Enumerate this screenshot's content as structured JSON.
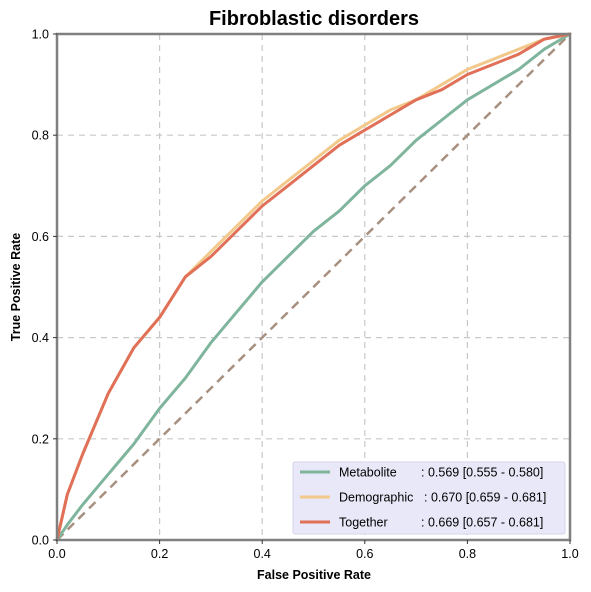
{
  "chart_data": {
    "type": "line",
    "title": "Fibroblastic disorders",
    "xlabel": "False Positive Rate",
    "ylabel": "True Positive Rate",
    "xlim": [
      0,
      1
    ],
    "ylim": [
      0,
      1
    ],
    "xticks": [
      "0.0",
      "0.2",
      "0.4",
      "0.6",
      "0.8",
      "1.0"
    ],
    "yticks": [
      "0.0",
      "0.2",
      "0.4",
      "0.6",
      "0.8",
      "1.0"
    ],
    "grid": true,
    "legend_position": "bottom-right",
    "colors": {
      "metabolite": "#7fb59c",
      "demographic": "#f2c98a",
      "together": "#e07058",
      "diagonal": "#a89080",
      "frame": "#808080",
      "legend_bg": "#e8e8f8"
    },
    "series": [
      {
        "name": "Metabolite",
        "legend": ": 0.569 [0.555 - 0.580]",
        "x": [
          0,
          0.02,
          0.05,
          0.1,
          0.15,
          0.2,
          0.25,
          0.3,
          0.35,
          0.4,
          0.45,
          0.5,
          0.55,
          0.6,
          0.65,
          0.7,
          0.75,
          0.8,
          0.85,
          0.9,
          0.95,
          1.0
        ],
        "y": [
          0,
          0.03,
          0.07,
          0.13,
          0.19,
          0.26,
          0.32,
          0.39,
          0.45,
          0.51,
          0.56,
          0.61,
          0.65,
          0.7,
          0.74,
          0.79,
          0.83,
          0.87,
          0.9,
          0.93,
          0.97,
          1.0
        ]
      },
      {
        "name": "Demographic",
        "legend": ": 0.670 [0.659 - 0.681]",
        "x": [
          0,
          0.02,
          0.05,
          0.1,
          0.15,
          0.2,
          0.25,
          0.3,
          0.35,
          0.4,
          0.45,
          0.5,
          0.55,
          0.6,
          0.65,
          0.7,
          0.75,
          0.8,
          0.85,
          0.9,
          0.95,
          1.0
        ],
        "y": [
          0,
          0.09,
          0.17,
          0.29,
          0.38,
          0.44,
          0.52,
          0.57,
          0.62,
          0.67,
          0.71,
          0.75,
          0.79,
          0.82,
          0.85,
          0.87,
          0.9,
          0.93,
          0.95,
          0.97,
          0.99,
          1.0
        ]
      },
      {
        "name": "Together",
        "legend": ": 0.669 [0.657 - 0.681]",
        "x": [
          0,
          0.02,
          0.05,
          0.1,
          0.15,
          0.2,
          0.25,
          0.3,
          0.35,
          0.4,
          0.45,
          0.5,
          0.55,
          0.6,
          0.65,
          0.7,
          0.75,
          0.8,
          0.85,
          0.9,
          0.95,
          1.0
        ],
        "y": [
          0,
          0.09,
          0.17,
          0.29,
          0.38,
          0.44,
          0.52,
          0.56,
          0.61,
          0.66,
          0.7,
          0.74,
          0.78,
          0.81,
          0.84,
          0.87,
          0.89,
          0.92,
          0.94,
          0.96,
          0.99,
          1.0
        ]
      }
    ],
    "reference_line": {
      "x": [
        0,
        1
      ],
      "y": [
        0,
        1
      ],
      "style": "dashed"
    }
  }
}
